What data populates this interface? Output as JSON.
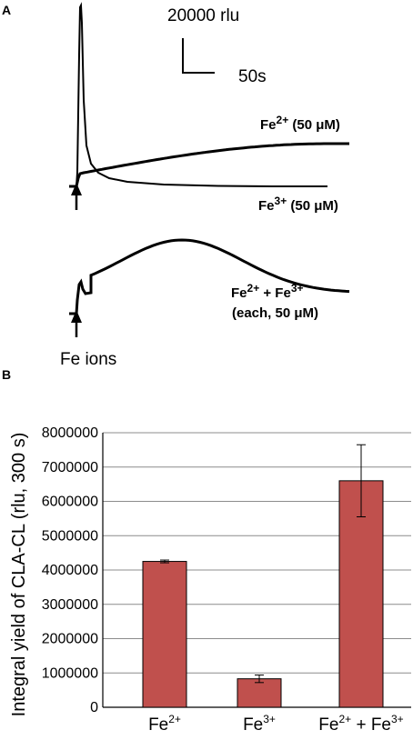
{
  "chart_data": [
    {
      "type": "line",
      "panel_label": "A",
      "scale_bar": {
        "y_label": "20000 rlu",
        "x_label": "50s"
      },
      "injection_label": "Fe ions",
      "traces": [
        {
          "label_main": "Fe",
          "label_sup": "2+",
          "label_rest": " (50 μM)",
          "description": "slow rise to broad maximum"
        },
        {
          "label_main": "Fe",
          "label_sup": "3+",
          "label_rest": " (50 μM)",
          "description": "sharp spike then fast decay"
        },
        {
          "label_main": "Fe",
          "label_sup": "2+",
          "label_mid": " + Fe",
          "label_sup2": "3+",
          "label_line2": "(each, 50 μM)",
          "description": "spike then broad maximum"
        }
      ]
    },
    {
      "type": "bar",
      "panel_label": "B",
      "ylabel": "Integral yield of CLA-CL (rlu, 300 s)",
      "ylim": [
        0,
        8000000
      ],
      "yticks": [
        "0",
        "1000000",
        "2000000",
        "3000000",
        "4000000",
        "5000000",
        "6000000",
        "7000000",
        "8000000"
      ],
      "categories": [
        {
          "main": "Fe",
          "sup": "2+",
          "mid": "",
          "sup2": ""
        },
        {
          "main": "Fe",
          "sup": "3+",
          "mid": "",
          "sup2": ""
        },
        {
          "main": "Fe",
          "sup": "2+",
          "mid": " + Fe",
          "sup2": "3+"
        }
      ],
      "values": [
        4250000,
        830000,
        6600000
      ],
      "errors": [
        40000,
        110000,
        1050000
      ],
      "bar_color": "#c0504d"
    }
  ]
}
